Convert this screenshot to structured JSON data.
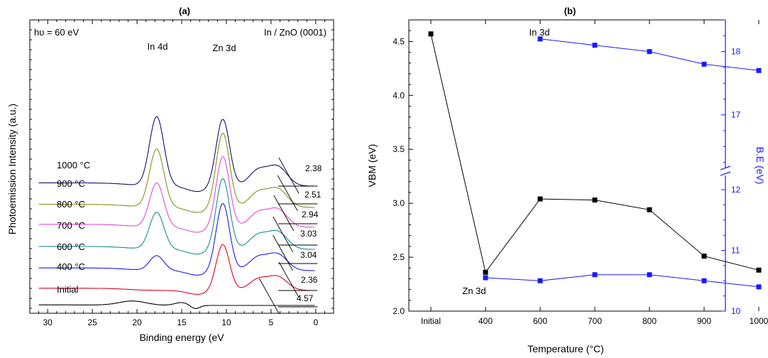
{
  "chart_data": [
    {
      "panel": "(a)",
      "type": "line",
      "title": "(a)",
      "xlabel": "Binding energy (eV",
      "ylabel": "Photoemission Intensity (a.u.)",
      "xlim": [
        32,
        -2
      ],
      "x_reversed": true,
      "xticks": [
        30,
        25,
        20,
        15,
        10,
        5,
        0
      ],
      "annotations": {
        "photon_energy": "hυ = 60 eV",
        "sample": "In / ZnO (0001)",
        "peak_in4d": "In 4d",
        "peak_zn3d": "Zn 3d"
      },
      "series": [
        {
          "name": "Initial",
          "color": "#000000",
          "vbm_label": "4.57"
        },
        {
          "name": "400 °C",
          "color": "#e4001b",
          "vbm_label": "2.36"
        },
        {
          "name": "600 °C",
          "color": "#1a1ae6",
          "vbm_label": "3.04"
        },
        {
          "name": "700 °C",
          "color": "#158f8f",
          "vbm_label": "3.03"
        },
        {
          "name": "800 °C",
          "color": "#e04ae0",
          "vbm_label": "2.94"
        },
        {
          "name": "900 °C",
          "color": "#8c8c1a",
          "vbm_label": "2.51"
        },
        {
          "name": "1000 °C",
          "color": "#10106e",
          "vbm_label": "2.38"
        }
      ]
    },
    {
      "panel": "(b)",
      "type": "line",
      "title": "(b)",
      "xlabel": "Temperature (°C)",
      "ylabel_left": "VBM (eV)",
      "ylabel_right": "B.E (eV)",
      "categories": [
        "Initial",
        "400",
        "600",
        "700",
        "800",
        "900",
        "1000"
      ],
      "ylim_left": [
        2.0,
        4.7
      ],
      "yticks_left": [
        2.0,
        2.5,
        3.0,
        3.5,
        4.0,
        4.5
      ],
      "right_axis_lower": {
        "range": [
          10.0,
          12.2
        ],
        "ticks": [
          10,
          11,
          12
        ]
      },
      "right_axis_upper": {
        "range": [
          16.2,
          18.5
        ],
        "ticks": [
          17,
          18
        ]
      },
      "series": [
        {
          "name": "VBM",
          "axis": "left",
          "color": "#000000",
          "x": [
            "Initial",
            "400",
            "600",
            "700",
            "800",
            "900",
            "1000"
          ],
          "values": [
            4.57,
            2.36,
            3.04,
            3.03,
            2.94,
            2.51,
            2.38
          ]
        },
        {
          "name": "In 3d",
          "axis": "right",
          "color": "#1a1aff",
          "x": [
            "600",
            "700",
            "800",
            "900",
            "1000"
          ],
          "values": [
            18.2,
            18.1,
            18.0,
            17.8,
            17.7
          ]
        },
        {
          "name": "Zn 3d",
          "axis": "right",
          "color": "#1a1aff",
          "x": [
            "400",
            "600",
            "700",
            "800",
            "900",
            "1000"
          ],
          "values": [
            10.55,
            10.5,
            10.6,
            10.6,
            10.5,
            10.4
          ]
        }
      ]
    }
  ]
}
